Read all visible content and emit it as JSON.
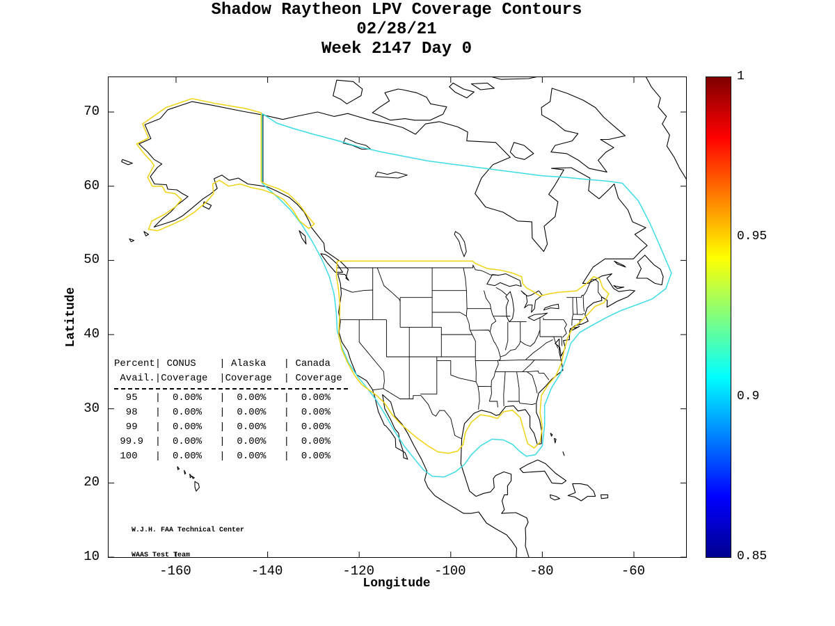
{
  "chart_data": {
    "type": "heatmap",
    "subtype": "geographic-coverage-contour-map",
    "title": "Shadow Raytheon LPV Coverage Contours",
    "date": "02/28/21",
    "week_label": "Week 2147 Day 0",
    "x_axis": {
      "label": "Longitude",
      "ticks": [
        -160,
        -140,
        -120,
        -100,
        -80,
        -60
      ],
      "range": [
        -174.7,
        -48.6
      ]
    },
    "y_axis": {
      "label": "Latitude",
      "ticks": [
        10,
        20,
        30,
        40,
        50,
        60,
        70
      ],
      "range": [
        10,
        74.7
      ]
    },
    "colorbar": {
      "ticks": [
        1,
        0.95,
        0.9,
        0.85
      ],
      "range": [
        0.85,
        1
      ],
      "colormap": "jet",
      "orientation": "vertical",
      "position": "right"
    },
    "contours": [
      {
        "level": 0.95,
        "color": "#f0d411",
        "regions": [
          "CONUS and northern Mexico",
          "Alaska"
        ]
      },
      {
        "level": 0.9,
        "color": "#3cdce6",
        "regions": [
          "Canada and offshore perimeter"
        ]
      }
    ],
    "coverage_table": {
      "columns": [
        "Percent Avail.",
        "CONUS Coverage",
        "Alaska Coverage",
        "Canada Coverage"
      ],
      "rows": [
        [
          95,
          "0.00%",
          "0.00%",
          "0.00%"
        ],
        [
          98,
          "0.00%",
          "0.00%",
          "0.00%"
        ],
        [
          99,
          "0.00%",
          "0.00%",
          "0.00%"
        ],
        [
          99.9,
          "0.00%",
          "0.00%",
          "0.00%"
        ],
        [
          100,
          "0.00%",
          "0.00%",
          "0.00%"
        ]
      ]
    },
    "grid": false,
    "legend": false
  },
  "coverage_table_display": {
    "header_lines": [
      "Percent| CONUS    | Alaska   | Canada",
      " Avail.|Coverage  |Coverage  | Coverage"
    ],
    "row_lines": [
      "  95   |  0.00%   |  0.00%   |  0.00%",
      "  98   |  0.00%   |  0.00%   |  0.00%",
      "  99   |  0.00%   |  0.00%   |  0.00%",
      " 99.9  |  0.00%   |  0.00%   |  0.00%",
      " 100   |  0.00%   |  0.00%   |  0.00%"
    ]
  },
  "attribution": {
    "line1": "W.J.H. FAA Technical Center",
    "line2": "WAAS Test Team"
  }
}
